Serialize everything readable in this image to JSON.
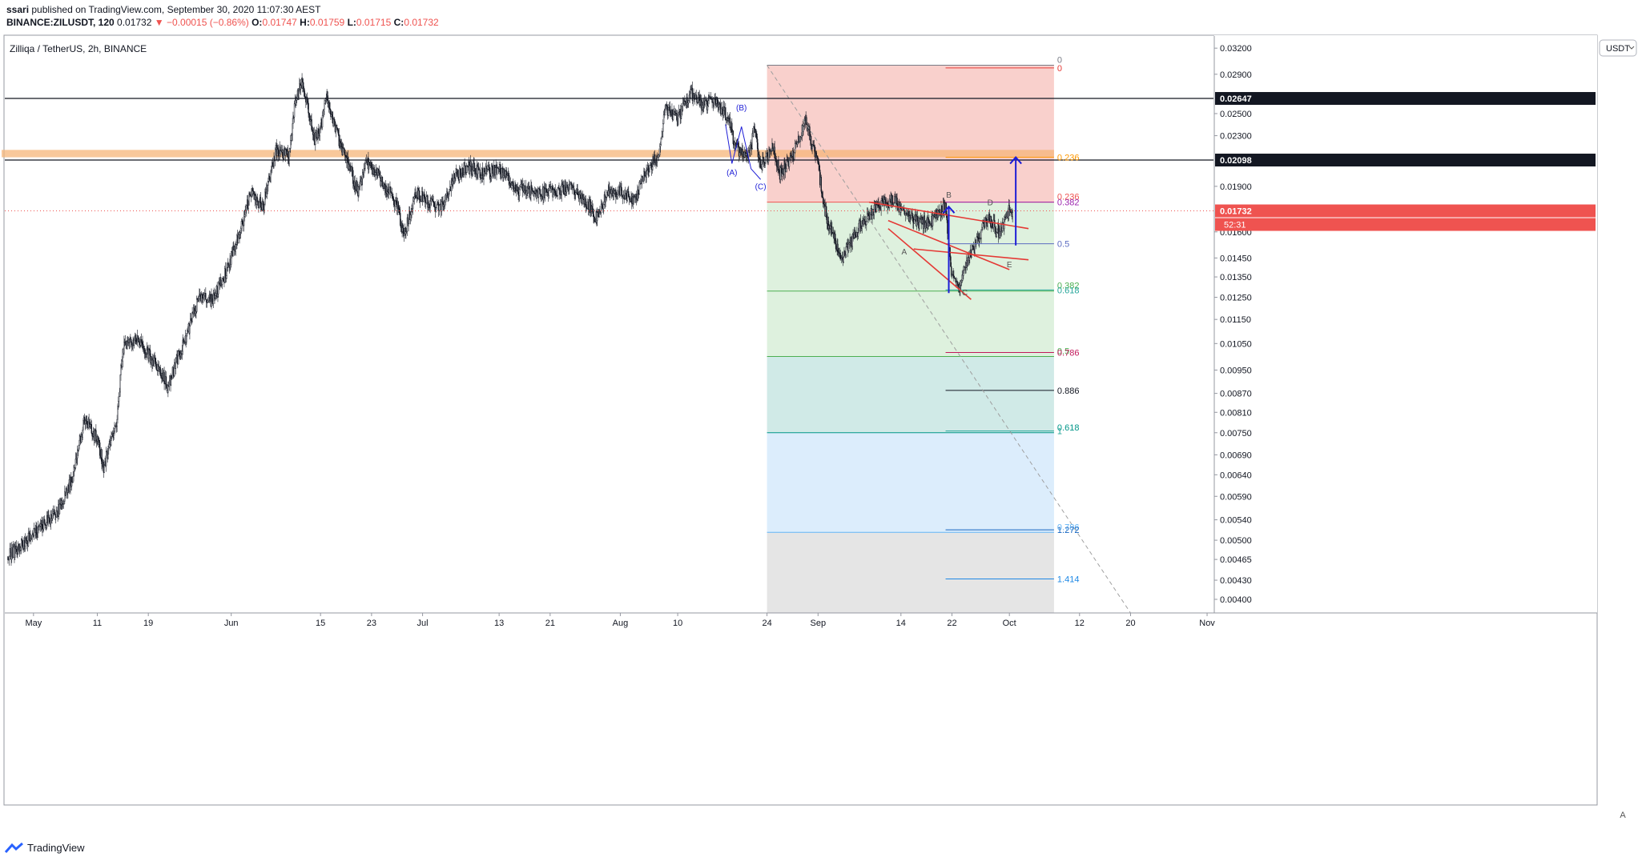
{
  "header": {
    "publisher": "ssari",
    "published_text": "published on TradingView.com, September 30, 2020 11:07:30 AEST",
    "symbol": "BINANCE:ZILUSDT, 120",
    "price": "0.01732",
    "change": "−0.00015 (−0.86%)",
    "open_label": "O:",
    "open": "0.01747",
    "high_label": "H:",
    "high": "0.01759",
    "low_label": "L:",
    "low": "0.01715",
    "close_label": "C:",
    "close": "0.01732"
  },
  "chart_title": "Zilliqa / TetherUS, 2h, BINANCE",
  "currency_badge": "USDT",
  "footer": {
    "brand": "TradingView",
    "auto_label": "A"
  },
  "colors": {
    "bear": "#ef5350",
    "bull": "#26a69a",
    "fib_red": "#f8c8c3",
    "fib_green": "#d8eed8",
    "fib_teal": "#c8e6e3",
    "fib_blue": "#d6eafb",
    "fib_gray": "#e0e0e0",
    "highlight": "#f5b57a",
    "drawing_red": "#e53935",
    "drawing_blue": "#1d1dd6"
  },
  "chart_data": {
    "type": "candlestick",
    "y_scale": "log",
    "ylim": [
      0.0038,
      0.0335
    ],
    "y_ticks": [
      "0.03200",
      "0.02900",
      "0.02647",
      "0.02500",
      "0.02300",
      "0.02098",
      "0.01900",
      "0.01732",
      "0.01600",
      "0.01450",
      "0.01350",
      "0.01250",
      "0.01150",
      "0.01050",
      "0.00950",
      "0.00870",
      "0.00810",
      "0.00750",
      "0.00690",
      "0.00640",
      "0.00590",
      "0.00540",
      "0.00500",
      "0.00465",
      "0.00430",
      "0.00400"
    ],
    "y_tick_values": [
      0.032,
      0.029,
      0.02647,
      0.025,
      0.023,
      0.02098,
      0.019,
      0.01732,
      0.016,
      0.0145,
      0.0135,
      0.0125,
      0.0115,
      0.0105,
      0.0095,
      0.0087,
      0.0081,
      0.0075,
      0.0069,
      0.0064,
      0.0059,
      0.0054,
      0.005,
      0.00465,
      0.0043,
      0.004
    ],
    "x_ticks": [
      "May",
      "11",
      "19",
      "Jun",
      "15",
      "23",
      "Jul",
      "13",
      "21",
      "Aug",
      "10",
      "24",
      "Sep",
      "14",
      "22",
      "Oct",
      "12",
      "20",
      "Nov"
    ],
    "x_tick_days": [
      0,
      10,
      18,
      31,
      45,
      53,
      61,
      73,
      81,
      92,
      101,
      115,
      123,
      136,
      144,
      153,
      164,
      172,
      184
    ],
    "day_range": [
      -4.5,
      185
    ],
    "price_path": [
      [
        -4,
        0.0047
      ],
      [
        0,
        0.0051
      ],
      [
        4,
        0.0056
      ],
      [
        6,
        0.0063
      ],
      [
        8,
        0.0079
      ],
      [
        10,
        0.0073
      ],
      [
        11,
        0.0066
      ],
      [
        13,
        0.0078
      ],
      [
        14,
        0.0103
      ],
      [
        16,
        0.0107
      ],
      [
        18,
        0.0101
      ],
      [
        20,
        0.0094
      ],
      [
        21,
        0.0089
      ],
      [
        23,
        0.0102
      ],
      [
        24,
        0.0108
      ],
      [
        26,
        0.0126
      ],
      [
        28,
        0.0123
      ],
      [
        30,
        0.0136
      ],
      [
        32,
        0.0155
      ],
      [
        34,
        0.0185
      ],
      [
        36,
        0.0176
      ],
      [
        38,
        0.0218
      ],
      [
        40,
        0.0212
      ],
      [
        41,
        0.026
      ],
      [
        42,
        0.0285
      ],
      [
        43,
        0.0258
      ],
      [
        44,
        0.0225
      ],
      [
        45,
        0.0238
      ],
      [
        46,
        0.0265
      ],
      [
        48,
        0.0225
      ],
      [
        49,
        0.021
      ],
      [
        51,
        0.0185
      ],
      [
        52,
        0.021
      ],
      [
        54,
        0.0198
      ],
      [
        57,
        0.0178
      ],
      [
        58,
        0.0158
      ],
      [
        60,
        0.0185
      ],
      [
        62,
        0.0178
      ],
      [
        64,
        0.0175
      ],
      [
        66,
        0.0197
      ],
      [
        68,
        0.0205
      ],
      [
        70,
        0.02
      ],
      [
        73,
        0.0202
      ],
      [
        76,
        0.0188
      ],
      [
        80,
        0.0185
      ],
      [
        84,
        0.019
      ],
      [
        87,
        0.0178
      ],
      [
        88,
        0.0168
      ],
      [
        90,
        0.0185
      ],
      [
        92,
        0.0188
      ],
      [
        94,
        0.018
      ],
      [
        96,
        0.02
      ],
      [
        98,
        0.0215
      ],
      [
        99,
        0.0255
      ],
      [
        101,
        0.0245
      ],
      [
        103,
        0.027
      ],
      [
        105,
        0.0258
      ],
      [
        107,
        0.0262
      ],
      [
        109,
        0.0245
      ],
      [
        110,
        0.0222
      ],
      [
        112,
        0.021
      ],
      [
        113,
        0.0235
      ],
      [
        114,
        0.0205
      ],
      [
        116,
        0.022
      ],
      [
        117,
        0.02
      ],
      [
        119,
        0.0212
      ],
      [
        121,
        0.0245
      ],
      [
        123,
        0.0205
      ],
      [
        124,
        0.0175
      ],
      [
        125,
        0.016
      ],
      [
        127,
        0.0145
      ],
      [
        129,
        0.016
      ],
      [
        131,
        0.017
      ],
      [
        133,
        0.0178
      ],
      [
        135,
        0.018
      ],
      [
        137,
        0.017
      ],
      [
        139,
        0.0165
      ],
      [
        141,
        0.0168
      ],
      [
        143,
        0.0175
      ],
      [
        144,
        0.0135
      ],
      [
        145,
        0.0128
      ],
      [
        146,
        0.014
      ],
      [
        148,
        0.0155
      ],
      [
        149,
        0.0165
      ],
      [
        150,
        0.0168
      ],
      [
        151,
        0.016
      ],
      [
        152,
        0.0162
      ],
      [
        153,
        0.0175
      ],
      [
        153.5,
        0.01732
      ]
    ],
    "horizontal_levels": [
      {
        "price": 0.02647,
        "label": "0.02647"
      },
      {
        "price": 0.02098,
        "label": "0.02098"
      }
    ],
    "current_price": {
      "price": 0.01732,
      "label": "0.01732",
      "countdown": "52:31"
    },
    "highlight_zone": {
      "day_start": -5,
      "day_end": 160,
      "price_low": 0.0212,
      "price_high": 0.0218
    },
    "fib_retracement_outer": {
      "day_start": 115,
      "day_end": 160,
      "levels": [
        {
          "ratio": "0",
          "price": 0.03,
          "color": "#787b86"
        },
        {
          "ratio": "0.236",
          "price": 0.0179,
          "color": "#ef5350"
        },
        {
          "ratio": "0.382",
          "price": 0.0128,
          "color": "#4caf50"
        },
        {
          "ratio": "0.5",
          "price": 0.01,
          "color": "#4caf50"
        },
        {
          "ratio": "0.618",
          "price": 0.0075,
          "color": "#009688"
        },
        {
          "ratio": "0.786",
          "price": 0.00515,
          "color": "#64b5f6"
        }
      ],
      "bottom_price": 0.0038
    },
    "fib_extension_inner": {
      "day_start": 143,
      "day_end": 160,
      "levels": [
        {
          "ratio": "0",
          "price": 0.0297,
          "color": "#e53935"
        },
        {
          "ratio": "0.236",
          "price": 0.0212,
          "color": "#ff9800"
        },
        {
          "ratio": "0.382",
          "price": 0.0179,
          "color": "#9c27b0"
        },
        {
          "ratio": "0.5",
          "price": 0.0153,
          "color": "#5c6bc0"
        },
        {
          "ratio": "0.618",
          "price": 0.01285,
          "color": "#26a69a"
        },
        {
          "ratio": "0.786",
          "price": 0.01015,
          "color": "#c2185b"
        },
        {
          "ratio": "0.886",
          "price": 0.0088,
          "color": "#131722"
        },
        {
          "ratio": "1",
          "price": 0.00755,
          "color": "#26a69a"
        },
        {
          "ratio": "1.272",
          "price": 0.0052,
          "color": "#1565c0"
        },
        {
          "ratio": "1.414",
          "price": 0.00432,
          "color": "#1e88e5"
        }
      ]
    },
    "wave_labels": [
      {
        "text": "(B)",
        "day": 111,
        "price": 0.0253
      },
      {
        "text": "(A)",
        "day": 109.5,
        "price": 0.0198
      },
      {
        "text": "(C)",
        "day": 114,
        "price": 0.0188
      },
      {
        "text": "A",
        "day": 136.5,
        "price": 0.0147
      },
      {
        "text": "B",
        "day": 143.5,
        "price": 0.0182
      },
      {
        "text": "C",
        "day": 146,
        "price": 0.0126
      },
      {
        "text": "D",
        "day": 150,
        "price": 0.0177
      },
      {
        "text": "E",
        "day": 153,
        "price": 0.014
      }
    ]
  }
}
